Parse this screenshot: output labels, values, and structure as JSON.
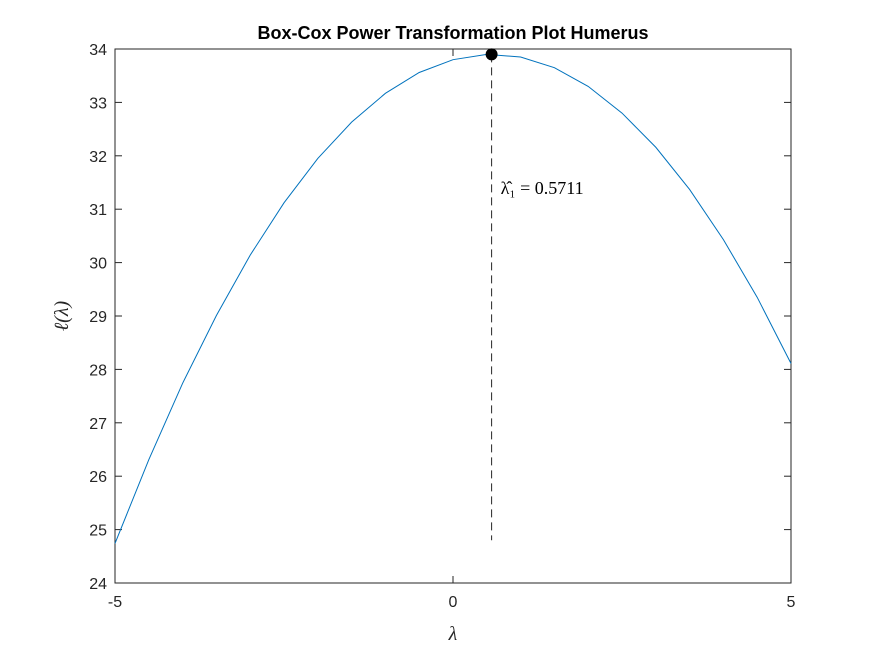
{
  "chart_data": {
    "type": "line",
    "title": "Box-Cox Power Transformation Plot Humerus",
    "x_label": "λ",
    "y_label": "ℓ(λ)",
    "x": [
      -5,
      -4.5,
      -4,
      -3.5,
      -3,
      -2.5,
      -2,
      -1.5,
      -1,
      -0.5,
      0,
      0.5,
      1,
      1.5,
      2,
      2.5,
      3,
      3.5,
      4,
      4.5,
      5
    ],
    "series": [
      {
        "color": "#0072bd",
        "values": [
          24.74,
          26.31,
          27.74,
          29.01,
          30.14,
          31.12,
          31.95,
          32.63,
          33.17,
          33.56,
          33.8,
          33.9,
          33.85,
          33.65,
          33.3,
          32.8,
          32.16,
          31.37,
          30.43,
          29.35,
          28.11
        ]
      }
    ],
    "peak": {
      "x": 0.5711,
      "y": 33.9,
      "line_bottom": 24.8,
      "color": "#000000",
      "label": "λ̂₁ = 0.5711"
    },
    "xlim": [
      -5,
      5
    ],
    "xticks": [
      -5,
      0,
      5
    ],
    "ylim": [
      24,
      34
    ],
    "yticks": [
      24,
      25,
      26,
      27,
      28,
      29,
      30,
      31,
      32,
      33,
      34
    ],
    "grid": false
  }
}
